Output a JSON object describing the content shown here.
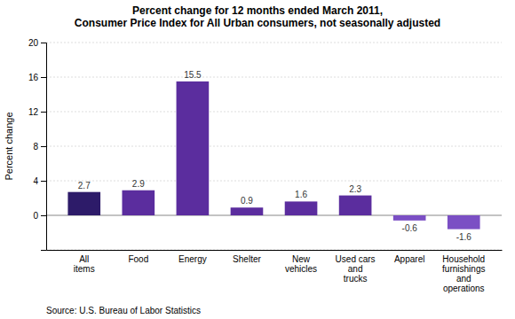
{
  "chart_data": {
    "type": "bar",
    "title": "Percent change for 12 months ended March 2011,\nConsumer Price Index for All Urban consumers, not seasonally adjusted",
    "ylabel": "Percent change",
    "source": "Source: U.S. Bureau of Labor Statistics",
    "categories": [
      "All\nitems",
      "Food",
      "Energy",
      "Shelter",
      "New\nvehicles",
      "Used cars\nand\ntrucks",
      "Apparel",
      "Household\nfurnishings\nand\noperations"
    ],
    "values": [
      2.7,
      2.9,
      15.5,
      0.9,
      1.6,
      2.3,
      -0.6,
      -1.6
    ],
    "colors": [
      "#2D1B69",
      "#5B2D9E",
      "#5B2D9E",
      "#5B2D9E",
      "#5B2D9E",
      "#5B2D9E",
      "#7B4FC4",
      "#7B4FC4"
    ],
    "ylim": [
      -4,
      20
    ],
    "yticks": [
      0,
      4,
      8,
      12,
      16,
      20
    ],
    "grid": true,
    "data_labels": true
  }
}
